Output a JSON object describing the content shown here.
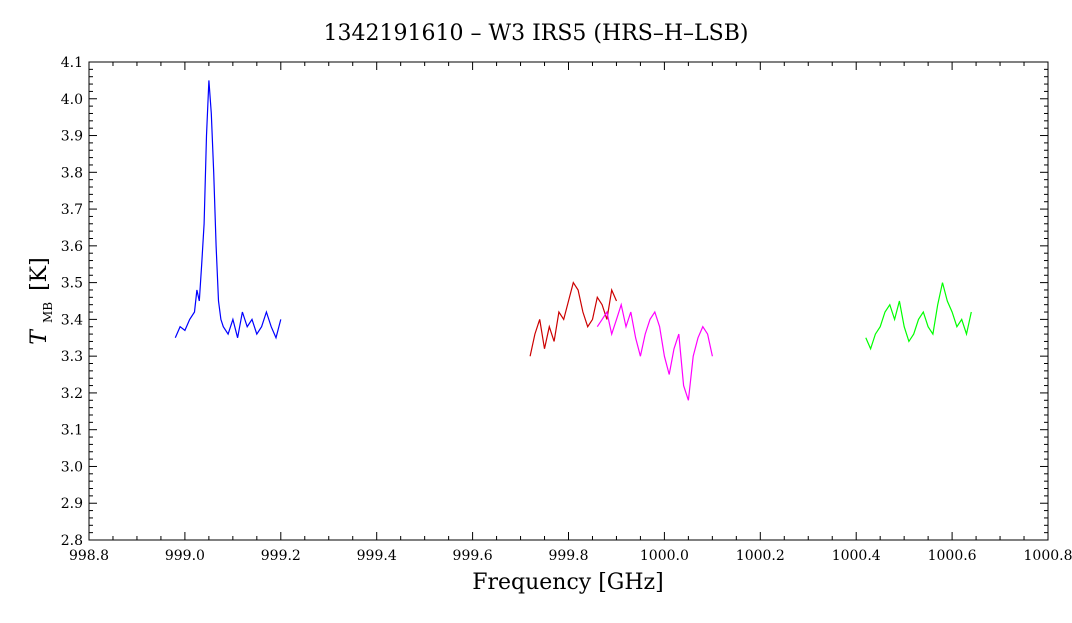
{
  "chart_data": {
    "type": "line",
    "title": "1342191610 – W3 IRS5 (HRS–H–LSB)",
    "xlabel": "Frequency [GHz]",
    "ylabel": "T",
    "ylabel_sub": "MB",
    "ylabel_unit": "[K]",
    "xlim": [
      998.8,
      1000.8
    ],
    "ylim": [
      2.8,
      4.1
    ],
    "x_ticks": [
      998.8,
      999.0,
      999.2,
      999.4,
      999.6,
      999.8,
      1000.0,
      1000.2,
      1000.4,
      1000.6,
      1000.8
    ],
    "x_tick_labels": [
      "998.8",
      "999.0",
      "999.2",
      "999.4",
      "999.6",
      "999.8",
      "1000.0",
      "1000.2",
      "1000.4",
      "1000.6",
      "1000.8"
    ],
    "y_ticks": [
      2.8,
      2.9,
      3.0,
      3.1,
      3.2,
      3.3,
      3.4,
      3.5,
      3.6,
      3.7,
      3.8,
      3.9,
      4.0,
      4.1
    ],
    "y_tick_labels": [
      "2.8",
      "2.9",
      "3.0",
      "3.1",
      "3.2",
      "3.3",
      "3.4",
      "3.5",
      "3.6",
      "3.7",
      "3.8",
      "3.9",
      "4.0",
      "4.1"
    ],
    "grid": false,
    "series": [
      {
        "color": "#0000ff",
        "x": [
          998.98,
          998.99,
          999.0,
          999.01,
          999.02,
          999.025,
          999.03,
          999.035,
          999.04,
          999.045,
          999.05,
          999.055,
          999.06,
          999.065,
          999.07,
          999.075,
          999.08,
          999.09,
          999.1,
          999.11,
          999.12,
          999.13,
          999.14,
          999.15,
          999.16,
          999.17,
          999.18,
          999.19,
          999.2
        ],
        "y": [
          3.35,
          3.38,
          3.37,
          3.4,
          3.42,
          3.48,
          3.45,
          3.55,
          3.66,
          3.9,
          4.05,
          3.96,
          3.8,
          3.6,
          3.45,
          3.4,
          3.38,
          3.36,
          3.4,
          3.35,
          3.42,
          3.38,
          3.4,
          3.36,
          3.38,
          3.42,
          3.38,
          3.35,
          3.4
        ]
      },
      {
        "color": "#cc0000",
        "x": [
          999.72,
          999.73,
          999.74,
          999.75,
          999.76,
          999.77,
          999.78,
          999.79,
          999.8,
          999.81,
          999.82,
          999.83,
          999.84,
          999.85,
          999.86,
          999.87,
          999.88,
          999.89,
          999.9
        ],
        "y": [
          3.3,
          3.36,
          3.4,
          3.32,
          3.38,
          3.34,
          3.42,
          3.4,
          3.45,
          3.5,
          3.48,
          3.42,
          3.38,
          3.4,
          3.46,
          3.44,
          3.4,
          3.48,
          3.45
        ]
      },
      {
        "color": "#ff00ff",
        "x": [
          999.86,
          999.87,
          999.88,
          999.89,
          999.9,
          999.91,
          999.92,
          999.93,
          999.94,
          999.95,
          999.96,
          999.97,
          999.98,
          999.99,
          1000.0,
          1000.01,
          1000.02,
          1000.03,
          1000.04,
          1000.05,
          1000.06,
          1000.07,
          1000.08,
          1000.09,
          1000.1
        ],
        "y": [
          3.38,
          3.4,
          3.42,
          3.36,
          3.4,
          3.44,
          3.38,
          3.42,
          3.35,
          3.3,
          3.36,
          3.4,
          3.42,
          3.38,
          3.3,
          3.25,
          3.32,
          3.36,
          3.22,
          3.18,
          3.3,
          3.35,
          3.38,
          3.36,
          3.3
        ]
      },
      {
        "color": "#00ff00",
        "x": [
          1000.42,
          1000.43,
          1000.44,
          1000.45,
          1000.46,
          1000.47,
          1000.48,
          1000.49,
          1000.5,
          1000.51,
          1000.52,
          1000.53,
          1000.54,
          1000.55,
          1000.56,
          1000.57,
          1000.58,
          1000.59,
          1000.6,
          1000.61,
          1000.62,
          1000.63,
          1000.64
        ],
        "y": [
          3.35,
          3.32,
          3.36,
          3.38,
          3.42,
          3.44,
          3.4,
          3.45,
          3.38,
          3.34,
          3.36,
          3.4,
          3.42,
          3.38,
          3.36,
          3.44,
          3.5,
          3.45,
          3.42,
          3.38,
          3.4,
          3.36,
          3.42
        ]
      }
    ]
  }
}
